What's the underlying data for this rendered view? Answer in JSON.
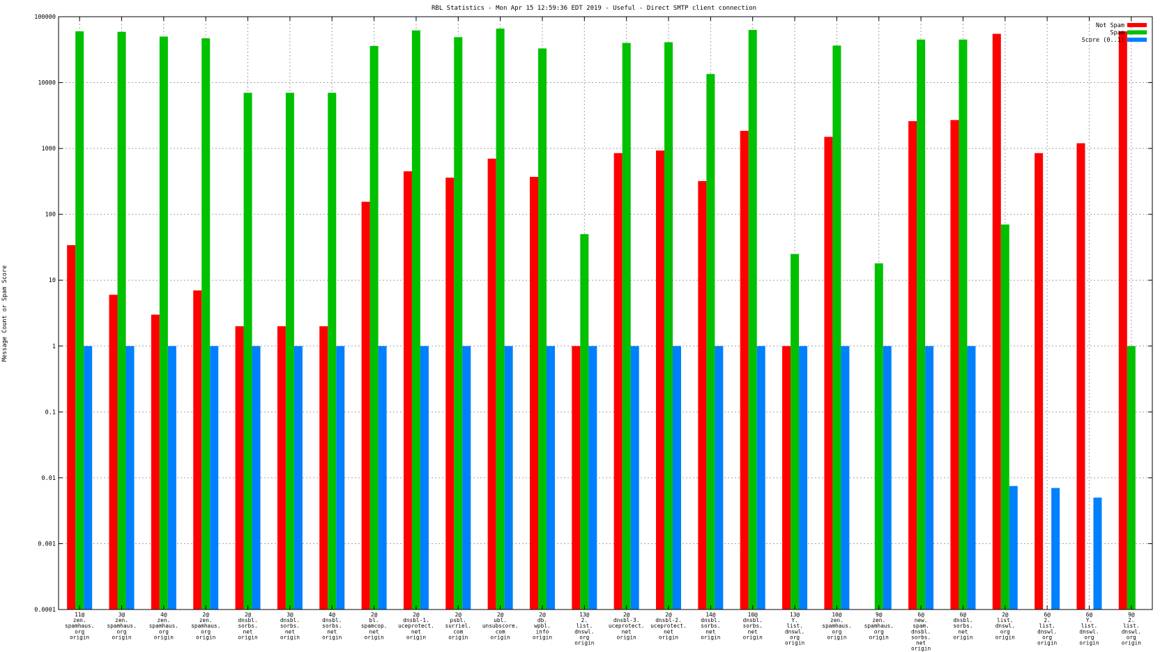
{
  "chart_data": {
    "type": "bar",
    "title": "RBL Statistics - Mon Apr 15 12:59:36 EDT 2019 - Useful - Direct SMTP client connection",
    "xlabel": "",
    "ylabel": "Message Count or Spam Score",
    "yscale": "log",
    "ylim": [
      0.0001,
      100000
    ],
    "yticks": [
      "0.0001",
      "0.001",
      "0.01",
      "0.1",
      "1",
      "10",
      "100",
      "1000",
      "10000",
      "100000"
    ],
    "grid": true,
    "legend_position": "top-right",
    "categories": [
      [
        "11@",
        "zen.",
        "spamhaus.",
        "org",
        "origin"
      ],
      [
        "3@",
        "zen.",
        "spamhaus.",
        "org",
        "origin"
      ],
      [
        "4@",
        "zen.",
        "spamhaus.",
        "org",
        "origin"
      ],
      [
        "2@",
        "zen.",
        "spamhaus.",
        "org",
        "origin"
      ],
      [
        "2@",
        "dnsbl.",
        "sorbs.",
        "net",
        "origin"
      ],
      [
        "3@",
        "dnsbl.",
        "sorbs.",
        "net",
        "origin"
      ],
      [
        "4@",
        "dnsbl.",
        "sorbs.",
        "net",
        "origin"
      ],
      [
        "2@",
        "bl.",
        "spamcop.",
        "net",
        "origin"
      ],
      [
        "2@",
        "dnsbl-1.",
        "uceprotect.",
        "net",
        "origin"
      ],
      [
        "2@",
        "psbl.",
        "surriel.",
        "com",
        "origin"
      ],
      [
        "2@",
        "ubl.",
        "unsubscore.",
        "com",
        "origin"
      ],
      [
        "2@",
        "db.",
        "wpbl.",
        "info",
        "origin"
      ],
      [
        "13@",
        "2.",
        "list.",
        "dnswl.",
        "org",
        "origin"
      ],
      [
        "2@",
        "dnsbl-3.",
        "uceprotect.",
        "net",
        "origin"
      ],
      [
        "2@",
        "dnsbl-2.",
        "uceprotect.",
        "net",
        "origin"
      ],
      [
        "14@",
        "dnsbl.",
        "sorbs.",
        "net",
        "origin"
      ],
      [
        "10@",
        "dnsbl.",
        "sorbs.",
        "net",
        "origin"
      ],
      [
        "13@",
        "Y.",
        "list.",
        "dnswl.",
        "org",
        "origin"
      ],
      [
        "10@",
        "zen.",
        "spamhaus.",
        "org",
        "origin"
      ],
      [
        "9@",
        "zen.",
        "spamhaus.",
        "org",
        "origin"
      ],
      [
        "6@",
        "new.",
        "spam.",
        "dnsbl.",
        "sorbs.",
        "net",
        "origin"
      ],
      [
        "6@",
        "dnsbl.",
        "sorbs.",
        "net",
        "origin"
      ],
      [
        "2@",
        "list.",
        "dnswl.",
        "org",
        "origin"
      ],
      [
        "6@",
        "2.",
        "list.",
        "dnswl.",
        "org",
        "origin"
      ],
      [
        "6@",
        "Y.",
        "list.",
        "dnswl.",
        "org",
        "origin"
      ],
      [
        "9@",
        "2.",
        "list.",
        "dnswl.",
        "org",
        "origin"
      ]
    ],
    "series": [
      {
        "name": "Not Spam",
        "color": "#ff0000",
        "values": [
          34,
          6,
          3,
          7,
          2,
          2,
          2,
          155,
          450,
          360,
          700,
          370,
          1,
          850,
          930,
          320,
          1850,
          1,
          1500,
          null,
          2600,
          2700,
          55000,
          850,
          1200,
          60000
        ]
      },
      {
        "name": "Spam",
        "color": "#00c000",
        "values": [
          60000,
          59000,
          50000,
          47000,
          7000,
          7000,
          7000,
          36000,
          62000,
          49000,
          66000,
          33000,
          50,
          40000,
          41000,
          13500,
          63000,
          25,
          36500,
          18,
          45000,
          45000,
          70,
          null,
          null,
          1
        ]
      },
      {
        "name": "Score (0..1)",
        "color": "#0080ff",
        "values": [
          1,
          1,
          1,
          1,
          1,
          1,
          1,
          1,
          1,
          1,
          1,
          1,
          1,
          1,
          1,
          1,
          1,
          1,
          1,
          1,
          1,
          1,
          0.0075,
          0.007,
          0.005,
          null
        ]
      }
    ]
  }
}
